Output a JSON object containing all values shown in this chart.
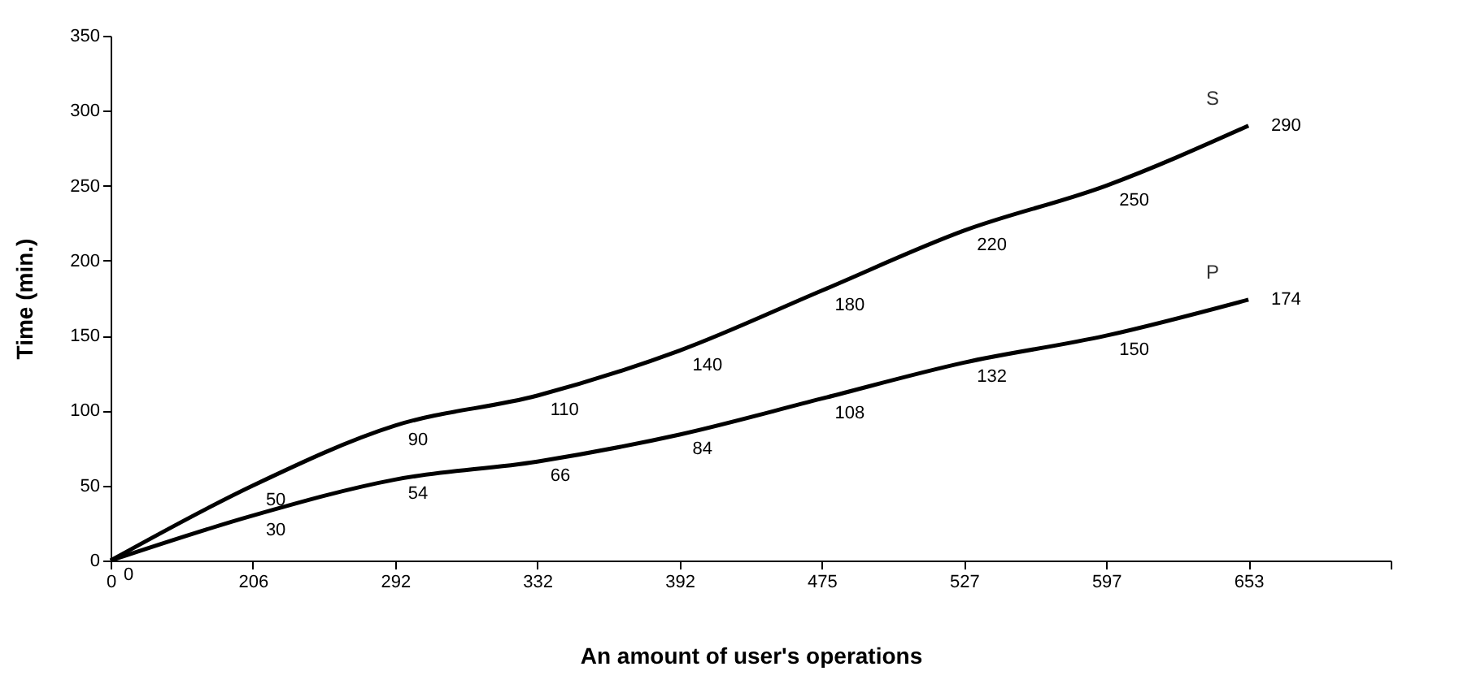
{
  "chart_data": {
    "type": "line",
    "xlabel": "An amount of user's operations",
    "ylabel": "Time (min.)",
    "categories": [
      "0",
      "206",
      "292",
      "332",
      "392",
      "475",
      "527",
      "597",
      "653",
      null
    ],
    "series": [
      {
        "name": "S",
        "color": "#000000",
        "values": [
          0,
          50,
          90,
          110,
          140,
          180,
          220,
          250,
          290,
          null
        ],
        "value_labels": [
          "0",
          "50",
          "90",
          "110",
          "140",
          "180",
          "220",
          "250",
          "290",
          null
        ]
      },
      {
        "name": "P",
        "color": "#000000",
        "values": [
          0,
          30,
          54,
          66,
          84,
          108,
          132,
          150,
          174,
          null
        ],
        "value_labels": [
          null,
          "30",
          "54",
          "66",
          "84",
          "108",
          "132",
          "150",
          "174",
          null
        ]
      }
    ],
    "ylim": [
      0,
      350
    ],
    "yticks": [
      0,
      50,
      100,
      150,
      200,
      250,
      300,
      350
    ],
    "grid": false,
    "marker": "none",
    "line_style": "solid",
    "legend": false
  }
}
